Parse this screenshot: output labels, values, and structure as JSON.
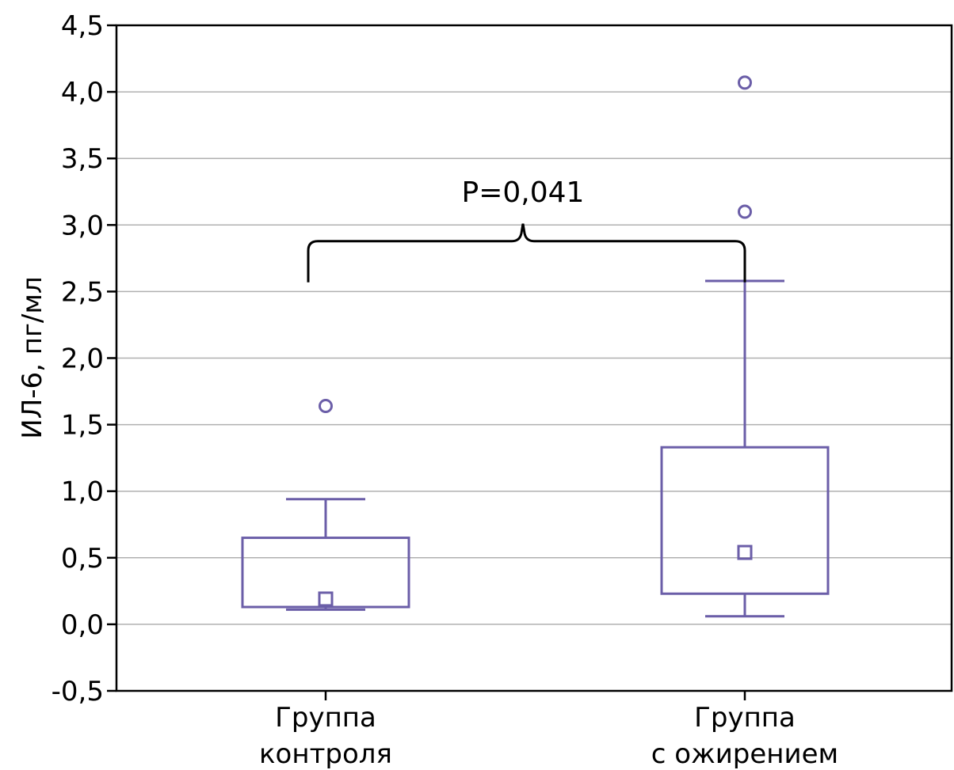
{
  "chart_data": {
    "type": "box",
    "title": "",
    "ylabel": "ИЛ-6, пг/мл",
    "xlabel": "",
    "ylim": [
      -0.5,
      4.5
    ],
    "yticks": [
      -0.5,
      0.0,
      0.5,
      1.0,
      1.5,
      2.0,
      2.5,
      3.0,
      3.5,
      4.0,
      4.5
    ],
    "ytick_labels": [
      "-0,5",
      "0,0",
      "0,5",
      "1,0",
      "1,5",
      "2,0",
      "2,5",
      "3,0",
      "3,5",
      "4,0",
      "4,5"
    ],
    "grid": true,
    "groups": [
      {
        "label_lines": [
          "Группа",
          "контроля"
        ],
        "median": 0.19,
        "q1": 0.13,
        "q3": 0.65,
        "whisker_low": 0.11,
        "whisker_high": 0.94,
        "outliers": [
          1.64
        ]
      },
      {
        "label_lines": [
          "Группа",
          "с ожирением"
        ],
        "median": 0.54,
        "q1": 0.23,
        "q3": 1.33,
        "whisker_low": 0.06,
        "whisker_high": 2.58,
        "outliers": [
          3.1,
          4.07
        ]
      }
    ],
    "annotation": {
      "text": "P=0,041",
      "bracket_level": 2.7
    },
    "colors": {
      "series": "#6b5ea8",
      "grid": "#b0b0b0",
      "axis": "#000000"
    }
  }
}
